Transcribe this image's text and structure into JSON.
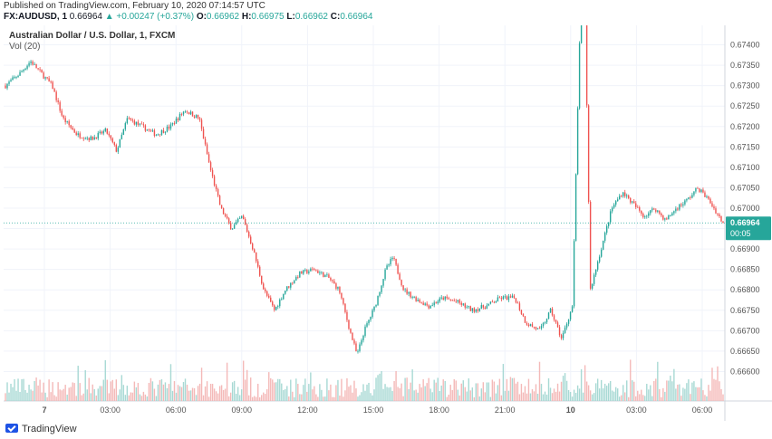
{
  "header": {
    "published": "Published on TradingView.com, February 10, 2020 07:14:57 UTC",
    "symbol": "FX:AUDUSD, 1",
    "last": "0.66964",
    "change": "▲ +0.00247 (+0.37%)",
    "open_label": "O:",
    "open": "0.66962",
    "high_label": "H:",
    "high": "0.66975",
    "low_label": "L:",
    "low": "0.66962",
    "close_label": "C:",
    "close": "0.66964"
  },
  "chart": {
    "title": "Australian Dollar / U.S. Dollar, 1, FXCM",
    "volume_label": "Vol (20)",
    "price_tag": "0.66964",
    "countdown": "00:05"
  },
  "footer": {
    "brand": "TradingView"
  },
  "colors": {
    "up": "#26a69a",
    "down": "#ef5350",
    "vol_up": "#9fd5cf",
    "vol_down": "#f3b1b0",
    "price_line": "#26a69a",
    "grid": "#f0f3fa"
  },
  "chart_data": {
    "type": "candlestick",
    "title": "Australian Dollar / U.S. Dollar, 1, FXCM",
    "ylim": [
      0.6655,
      0.6743
    ],
    "y_ticks": [
      "0.67400",
      "0.67350",
      "0.67300",
      "0.67250",
      "0.67200",
      "0.67150",
      "0.67100",
      "0.67050",
      "0.67000",
      "0.66950",
      "0.66900",
      "0.66850",
      "0.66800",
      "0.66750",
      "0.66700",
      "0.66650",
      "0.66600"
    ],
    "x_ticks": [
      "7",
      "03:00",
      "06:00",
      "09:00",
      "12:00",
      "15:00",
      "18:00",
      "21:00",
      "10",
      "03:00",
      "06:00"
    ],
    "last_price": 0.66964,
    "series": [
      {
        "t": 0,
        "close": 0.673
      },
      {
        "t": 0.02,
        "close": 0.6733
      },
      {
        "t": 0.035,
        "close": 0.6736
      },
      {
        "t": 0.05,
        "close": 0.6733
      },
      {
        "t": 0.065,
        "close": 0.673
      },
      {
        "t": 0.08,
        "close": 0.6722
      },
      {
        "t": 0.1,
        "close": 0.6718
      },
      {
        "t": 0.12,
        "close": 0.6717
      },
      {
        "t": 0.14,
        "close": 0.6719
      },
      {
        "t": 0.155,
        "close": 0.6714
      },
      {
        "t": 0.17,
        "close": 0.6722
      },
      {
        "t": 0.19,
        "close": 0.672
      },
      {
        "t": 0.21,
        "close": 0.6718
      },
      {
        "t": 0.23,
        "close": 0.672
      },
      {
        "t": 0.25,
        "close": 0.6724
      },
      {
        "t": 0.27,
        "close": 0.6722
      },
      {
        "t": 0.285,
        "close": 0.671
      },
      {
        "t": 0.3,
        "close": 0.67
      },
      {
        "t": 0.315,
        "close": 0.6695
      },
      {
        "t": 0.33,
        "close": 0.6698
      },
      {
        "t": 0.345,
        "close": 0.669
      },
      {
        "t": 0.36,
        "close": 0.668
      },
      {
        "t": 0.375,
        "close": 0.6675
      },
      {
        "t": 0.39,
        "close": 0.668
      },
      {
        "t": 0.41,
        "close": 0.6684
      },
      {
        "t": 0.43,
        "close": 0.6685
      },
      {
        "t": 0.45,
        "close": 0.6683
      },
      {
        "t": 0.465,
        "close": 0.668
      },
      {
        "t": 0.48,
        "close": 0.667
      },
      {
        "t": 0.49,
        "close": 0.6664
      },
      {
        "t": 0.5,
        "close": 0.667
      },
      {
        "t": 0.515,
        "close": 0.6676
      },
      {
        "t": 0.53,
        "close": 0.6685
      },
      {
        "t": 0.54,
        "close": 0.6688
      },
      {
        "t": 0.555,
        "close": 0.668
      },
      {
        "t": 0.57,
        "close": 0.6678
      },
      {
        "t": 0.59,
        "close": 0.6676
      },
      {
        "t": 0.61,
        "close": 0.6678
      },
      {
        "t": 0.63,
        "close": 0.6677
      },
      {
        "t": 0.65,
        "close": 0.6675
      },
      {
        "t": 0.67,
        "close": 0.6676
      },
      {
        "t": 0.69,
        "close": 0.6678
      },
      {
        "t": 0.71,
        "close": 0.6678
      },
      {
        "t": 0.725,
        "close": 0.6672
      },
      {
        "t": 0.745,
        "close": 0.667
      },
      {
        "t": 0.76,
        "close": 0.6675
      },
      {
        "t": 0.775,
        "close": 0.6668
      },
      {
        "t": 0.79,
        "close": 0.6676
      },
      {
        "t": 0.805,
        "close": 0.6773
      },
      {
        "t": 0.815,
        "close": 0.668
      },
      {
        "t": 0.83,
        "close": 0.669
      },
      {
        "t": 0.845,
        "close": 0.67
      },
      {
        "t": 0.86,
        "close": 0.6704
      },
      {
        "t": 0.875,
        "close": 0.6701
      },
      {
        "t": 0.89,
        "close": 0.6698
      },
      {
        "t": 0.905,
        "close": 0.67
      },
      {
        "t": 0.92,
        "close": 0.6697
      },
      {
        "t": 0.935,
        "close": 0.67
      },
      {
        "t": 0.95,
        "close": 0.6702
      },
      {
        "t": 0.965,
        "close": 0.6705
      },
      {
        "t": 0.98,
        "close": 0.6702
      },
      {
        "t": 1.0,
        "close": 0.66964
      }
    ]
  }
}
